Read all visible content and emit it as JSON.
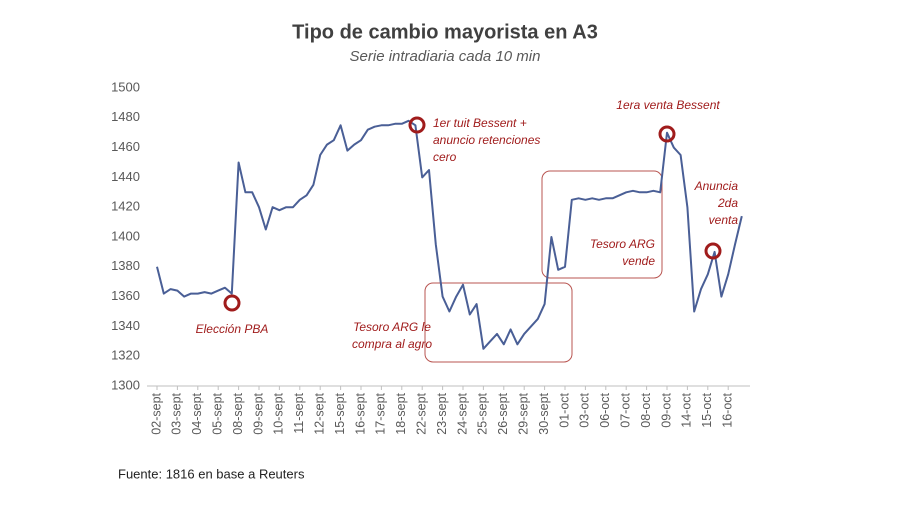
{
  "chart_data": {
    "type": "line",
    "title": "Tipo de cambio mayorista en A3",
    "subtitle": "Serie intradiaria cada 10 min",
    "source": "Fuente: 1816 en base a Reuters",
    "color": "#4a5f96",
    "grid": false,
    "ylim": [
      1300,
      1500
    ],
    "yticks": [
      1300,
      1320,
      1340,
      1360,
      1380,
      1400,
      1420,
      1440,
      1460,
      1480,
      1500
    ],
    "categories": [
      "02-sept",
      null,
      null,
      "03-sept",
      null,
      null,
      "04-sept",
      null,
      null,
      "05-sept",
      null,
      null,
      "08-sept",
      null,
      null,
      "09-sept",
      null,
      null,
      "10-sept",
      null,
      null,
      "11-sept",
      null,
      null,
      "12-sept",
      null,
      null,
      "15-sept",
      null,
      null,
      "16-sept",
      null,
      null,
      "17-sept",
      null,
      null,
      "18-sept",
      null,
      null,
      "22-sept",
      null,
      null,
      "23-sept",
      null,
      null,
      "24-sept",
      null,
      null,
      "25-sept",
      null,
      null,
      "26-sept",
      null,
      null,
      "29-sept",
      null,
      null,
      "30-sept",
      null,
      null,
      "01-oct",
      null,
      null,
      "03-oct",
      null,
      null,
      "06-oct",
      null,
      null,
      "07-oct",
      null,
      null,
      "08-oct",
      null,
      null,
      "09-oct",
      null,
      null,
      "14-oct",
      null,
      null,
      "15-oct",
      null,
      null,
      "16-oct",
      null,
      null
    ],
    "values": [
      1380,
      1362,
      1365,
      1364,
      1360,
      1362,
      1362,
      1363,
      1362,
      1364,
      1366,
      1362,
      1450,
      1430,
      1430,
      1420,
      1405,
      1420,
      1418,
      1420,
      1420,
      1425,
      1428,
      1435,
      1455,
      1462,
      1465,
      1475,
      1458,
      1462,
      1465,
      1472,
      1474,
      1475,
      1475,
      1476,
      1476,
      1478,
      1475,
      1440,
      1445,
      1395,
      1360,
      1350,
      1360,
      1368,
      1348,
      1355,
      1325,
      1330,
      1335,
      1328,
      1338,
      1328,
      1335,
      1340,
      1345,
      1355,
      1400,
      1378,
      1380,
      1425,
      1426,
      1425,
      1426,
      1425,
      1426,
      1426,
      1428,
      1430,
      1431,
      1430,
      1430,
      1431,
      1430,
      1470,
      1460,
      1455,
      1420,
      1350,
      1365,
      1375,
      1390,
      1360,
      1375,
      1395,
      1414
    ],
    "annotations": [
      [
        "Elección PBA"
      ],
      [
        "1er tuit Bessent +",
        "anuncio retenciones",
        "cero"
      ],
      [
        "Tesoro ARG le",
        "compra al agro"
      ],
      [
        "Tesoro ARG",
        "vende"
      ],
      [
        "1era venta Bessent"
      ],
      [
        "Anuncia",
        "2da",
        "venta"
      ]
    ]
  }
}
